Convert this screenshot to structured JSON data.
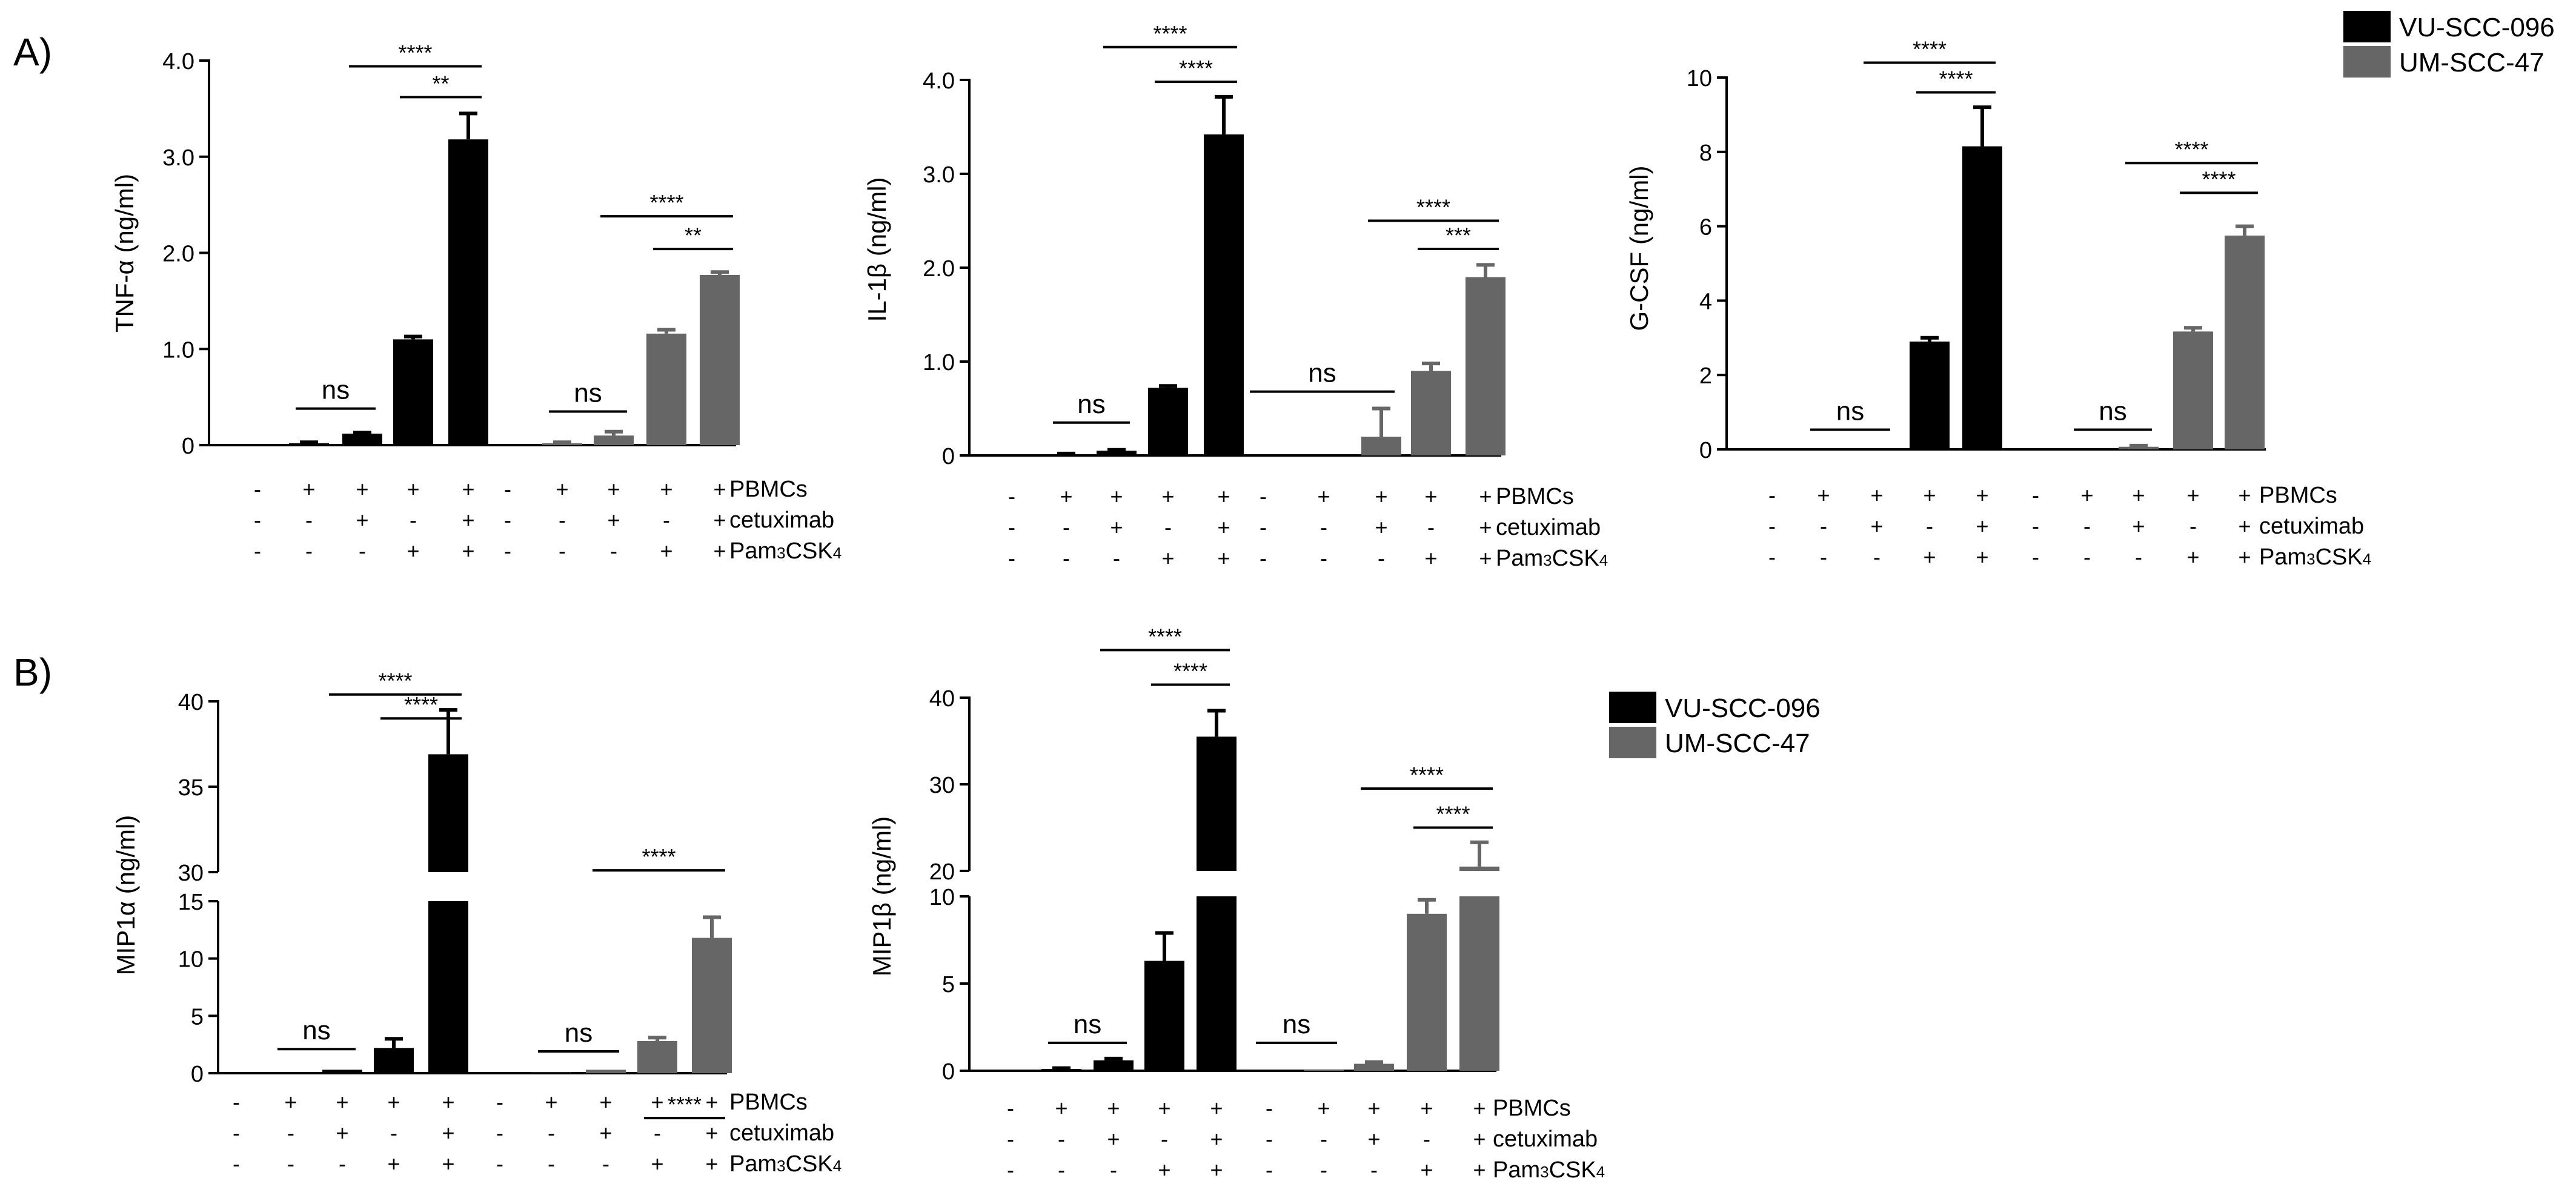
{
  "figure": {
    "panel_labels": [
      "A)",
      "B)"
    ],
    "legend": [
      {
        "label": "VU-SCC-096",
        "color": "#000000"
      },
      {
        "label": "UM-SCC-47",
        "color": "#666666"
      }
    ],
    "conditions": {
      "row_labels": [
        "PBMCs",
        "cetuximab",
        "Pam3CSK4"
      ],
      "row_label_parts": [
        [
          "PBMCs"
        ],
        [
          "cetuximab"
        ],
        [
          "Pam",
          "3",
          "CSK",
          "4"
        ]
      ],
      "signs": [
        [
          "-",
          "+",
          "+",
          "+",
          "+",
          "-",
          "+",
          "+",
          "+",
          "+"
        ],
        [
          "-",
          "-",
          "+",
          "-",
          "+",
          "-",
          "-",
          "+",
          "-",
          "+"
        ],
        [
          "-",
          "-",
          "-",
          "+",
          "+",
          "-",
          "-",
          "-",
          "+",
          "+"
        ]
      ]
    },
    "colors": {
      "vu": "#000000",
      "um": "#666666"
    }
  },
  "chart_data": [
    {
      "id": "tnf",
      "type": "bar",
      "ylabel": "TNF-α (ng/ml)",
      "ylim": [
        0,
        4.0
      ],
      "ticks": [
        0,
        1.0,
        2.0,
        3.0,
        4.0
      ],
      "tick_labels": [
        "0",
        "1.0",
        "2.0",
        "3.0",
        "4.0"
      ],
      "series": [
        {
          "name": "VU-SCC-096",
          "values": [
            0.0,
            0.02,
            0.12,
            1.1,
            3.18
          ],
          "errors": [
            0,
            0.01,
            0.01,
            0.03,
            0.27
          ]
        },
        {
          "name": "UM-SCC-47",
          "values": [
            0.0,
            0.02,
            0.1,
            1.16,
            1.77
          ],
          "errors": [
            0,
            0.01,
            0.04,
            0.04,
            0.03
          ]
        }
      ],
      "annotations": [
        {
          "label": "ns",
          "from": 1,
          "to": 2,
          "y": 0.38
        },
        {
          "label": "****",
          "from": 2,
          "to": 4,
          "y": 3.94
        },
        {
          "label": "**",
          "from": 3,
          "to": 4,
          "y": 3.62
        },
        {
          "label": "ns",
          "from": 6,
          "to": 7,
          "y": 0.35
        },
        {
          "label": "****",
          "from": 7,
          "to": 9,
          "y": 2.38
        },
        {
          "label": "**",
          "from": 8,
          "to": 9,
          "y": 2.04
        }
      ]
    },
    {
      "id": "il1b",
      "type": "bar",
      "ylabel": "IL-1β (ng/ml)",
      "ylim": [
        0,
        4.0
      ],
      "ticks": [
        0,
        1.0,
        2.0,
        3.0,
        4.0
      ],
      "tick_labels": [
        "0",
        "1.0",
        "2.0",
        "3.0",
        "4.0"
      ],
      "series": [
        {
          "name": "VU-SCC-096",
          "values": [
            0.0,
            0.01,
            0.05,
            0.72,
            3.42
          ],
          "errors": [
            0,
            0.01,
            0.01,
            0.02,
            0.4
          ]
        },
        {
          "name": "UM-SCC-47",
          "values": [
            0.0,
            0.0,
            0.2,
            0.9,
            1.9
          ],
          "errors": [
            0,
            0,
            0.3,
            0.08,
            0.13
          ]
        }
      ],
      "annotations": [
        {
          "label": "ns",
          "from": 1,
          "to": 2,
          "y": 0.35
        },
        {
          "label": "****",
          "from": 2,
          "to": 4,
          "y": 4.35
        },
        {
          "label": "****",
          "from": 3,
          "to": 4,
          "y": 3.98
        },
        {
          "label": "ns",
          "from": 5,
          "to": 7,
          "y": 0.68
        },
        {
          "label": "****",
          "from": 7,
          "to": 9,
          "y": 2.5
        },
        {
          "label": "***",
          "from": 8,
          "to": 9,
          "y": 2.2
        }
      ]
    },
    {
      "id": "gcsf",
      "type": "bar",
      "ylabel": "G-CSF (ng/ml)",
      "ylim": [
        0,
        10
      ],
      "ticks": [
        0,
        2,
        4,
        6,
        8,
        10
      ],
      "tick_labels": [
        "0",
        "2",
        "4",
        "6",
        "8",
        "10"
      ],
      "series": [
        {
          "name": "VU-SCC-096",
          "values": [
            0.0,
            0.0,
            0.0,
            2.9,
            8.15
          ],
          "errors": [
            0,
            0,
            0,
            0.1,
            1.05
          ]
        },
        {
          "name": "UM-SCC-47",
          "values": [
            0.0,
            0.0,
            0.07,
            3.17,
            5.75
          ],
          "errors": [
            0,
            0,
            0.03,
            0.1,
            0.25
          ]
        }
      ],
      "annotations": [
        {
          "label": "ns",
          "from": 1,
          "to": 2,
          "y": 0.53
        },
        {
          "label": "****",
          "from": 2,
          "to": 4,
          "y": 10.4
        },
        {
          "label": "****",
          "from": 3,
          "to": 4,
          "y": 9.6
        },
        {
          "label": "ns",
          "from": 6,
          "to": 7,
          "y": 0.53
        },
        {
          "label": "****",
          "from": 7,
          "to": 9,
          "y": 7.7
        },
        {
          "label": "****",
          "from": 8,
          "to": 9,
          "y": 6.9
        }
      ]
    },
    {
      "id": "mip1a",
      "type": "bar",
      "ylabel": "MIP1α (ng/ml)",
      "broken_axis": {
        "lower": {
          "range": [
            0,
            15
          ],
          "ticks": [
            0,
            5,
            10,
            15
          ],
          "tick_labels": [
            "0",
            "5",
            "10",
            "15"
          ]
        },
        "upper": {
          "range": [
            30,
            40
          ],
          "ticks": [
            30,
            35,
            40
          ],
          "tick_labels": [
            "30",
            "35",
            "40"
          ]
        }
      },
      "series": [
        {
          "name": "VU-SCC-096",
          "values": [
            0.0,
            0.05,
            0.3,
            2.2,
            36.9
          ],
          "errors": [
            0,
            0.02,
            0.05,
            0.8,
            2.6
          ]
        },
        {
          "name": "UM-SCC-47",
          "values": [
            0.0,
            0.05,
            0.3,
            2.8,
            11.8
          ],
          "errors": [
            0,
            0.02,
            0.05,
            0.3,
            1.8
          ]
        }
      ],
      "annotations": [
        {
          "label": "ns",
          "from": 1,
          "to": 2,
          "y": 2.1
        },
        {
          "label": "****",
          "from": 2,
          "to": 4,
          "y": 40.4
        },
        {
          "label": "****",
          "from": 3,
          "to": 4,
          "y": 39.0
        },
        {
          "label": "ns",
          "from": 6,
          "to": 7,
          "y": 1.9
        },
        {
          "label": "****",
          "from": 7,
          "to": 9,
          "y": 30.1
        },
        {
          "label": "****",
          "from": 8,
          "to": 9,
          "y": 15.6
        }
      ]
    },
    {
      "id": "mip1b",
      "type": "bar",
      "ylabel": "MIP1β (ng/ml)",
      "broken_axis": {
        "lower": {
          "range": [
            0,
            10
          ],
          "ticks": [
            0,
            5,
            10
          ],
          "tick_labels": [
            "0",
            "5",
            "10"
          ]
        },
        "upper": {
          "range": [
            20,
            40
          ],
          "ticks": [
            20,
            30,
            40
          ],
          "tick_labels": [
            "20",
            "30",
            "40"
          ]
        }
      },
      "series": [
        {
          "name": "VU-SCC-096",
          "values": [
            0.0,
            0.1,
            0.6,
            6.3,
            35.5
          ],
          "errors": [
            0,
            0.05,
            0.1,
            1.6,
            3.0
          ]
        },
        {
          "name": "UM-SCC-47",
          "values": [
            0.0,
            0.05,
            0.4,
            9.0,
            20.5
          ],
          "errors": [
            0,
            0.02,
            0.1,
            0.8,
            2.8
          ]
        }
      ],
      "annotations": [
        {
          "label": "ns",
          "from": 1,
          "to": 2,
          "y": 1.6
        },
        {
          "label": "****",
          "from": 2,
          "to": 4,
          "y": 45.5
        },
        {
          "label": "****",
          "from": 3,
          "to": 4,
          "y": 41.5
        },
        {
          "label": "ns",
          "from": 5,
          "to": 6,
          "y": 1.6
        },
        {
          "label": "****",
          "from": 7,
          "to": 9,
          "y": 29.5
        },
        {
          "label": "****",
          "from": 8,
          "to": 9,
          "y": 25.0
        }
      ]
    }
  ]
}
